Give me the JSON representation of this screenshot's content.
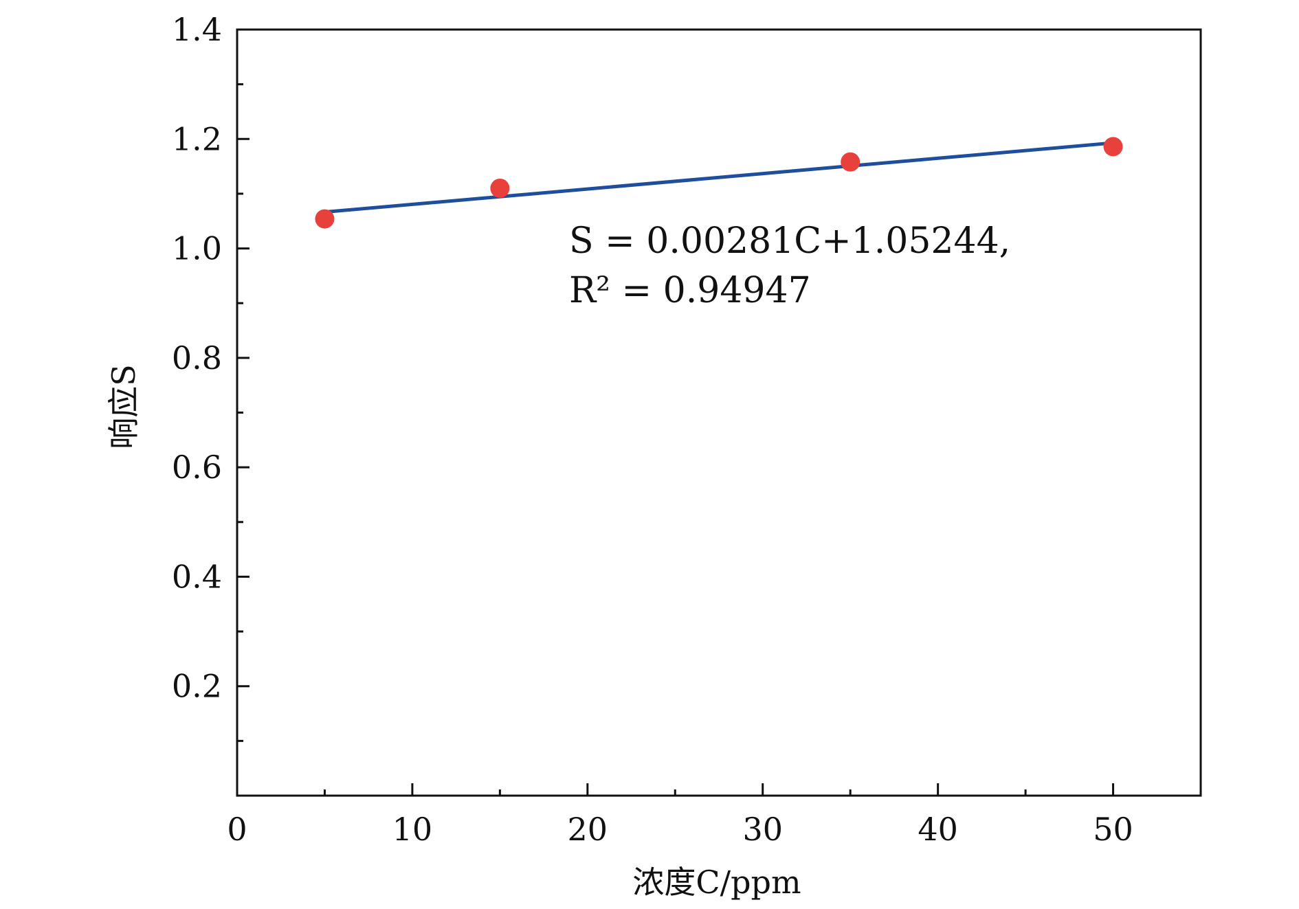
{
  "chart_data": {
    "type": "scatter",
    "title": "",
    "xlabel": "浓度C/ppm",
    "ylabel": "响应S",
    "xlim": [
      0,
      55
    ],
    "ylim": [
      0,
      1.4
    ],
    "x_ticks": [
      0,
      10,
      20,
      30,
      40,
      50
    ],
    "x_tick_labels": [
      "0",
      "10",
      "20",
      "30",
      "40",
      "50"
    ],
    "y_ticks": [
      0.2,
      0.4,
      0.6,
      0.8,
      1.0,
      1.2,
      1.4
    ],
    "y_tick_labels": [
      "0.2",
      "0.4",
      "0.6",
      "0.8",
      "1.0",
      "1.2",
      "1.4"
    ],
    "grid": false,
    "series": [
      {
        "kind": "points",
        "x": [
          5,
          15,
          35,
          50
        ],
        "y": [
          1.054,
          1.11,
          1.158,
          1.186
        ],
        "color": "#e8403a"
      },
      {
        "kind": "fit-line",
        "x": [
          5,
          50
        ],
        "y": [
          1.0665,
          1.1929
        ],
        "color": "#1f4e9c"
      }
    ],
    "annotations": [
      {
        "text": "S = 0.00281C+1.05244,"
      },
      {
        "text": "R² = 0.94947"
      }
    ]
  }
}
